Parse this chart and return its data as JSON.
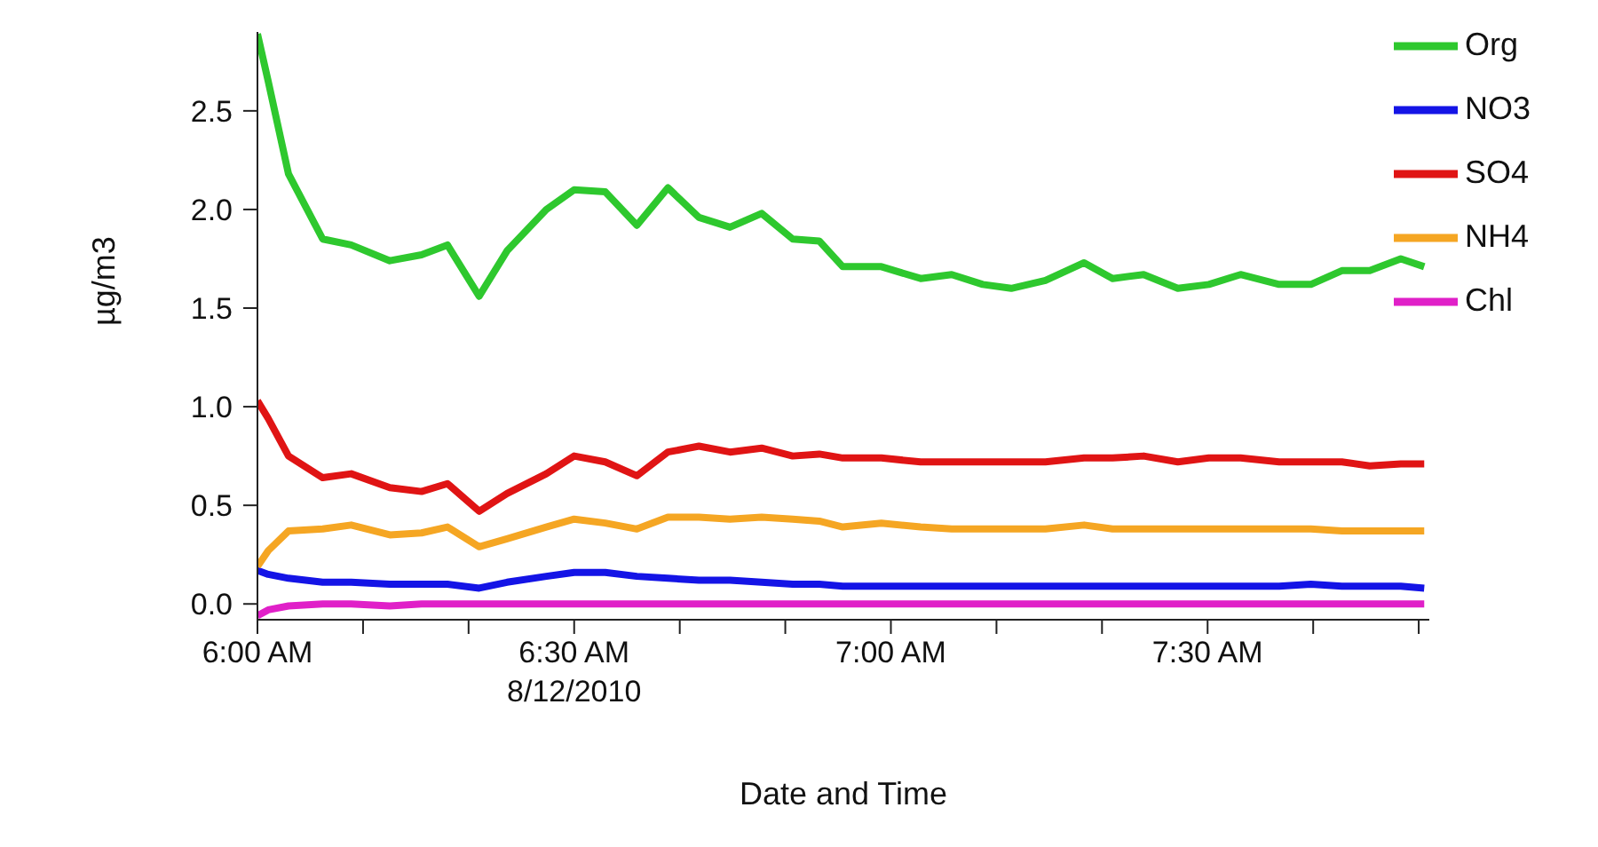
{
  "chart_data": {
    "type": "line",
    "xlabel": "Date and Time",
    "ylabel": "µg/m3",
    "x": [
      6.0,
      6.017,
      6.049,
      6.103,
      6.148,
      6.209,
      6.259,
      6.3,
      6.35,
      6.394,
      6.456,
      6.5,
      6.549,
      6.599,
      6.648,
      6.697,
      6.746,
      6.796,
      6.845,
      6.887,
      6.924,
      6.985,
      7.047,
      7.096,
      7.145,
      7.19,
      7.244,
      7.305,
      7.35,
      7.399,
      7.453,
      7.502,
      7.552,
      7.613,
      7.663,
      7.712,
      7.756,
      7.805,
      7.842
    ],
    "series": [
      {
        "name": "Org",
        "color": "#2ec82e",
        "values": [
          2.89,
          2.65,
          2.18,
          1.85,
          1.82,
          1.74,
          1.77,
          1.82,
          1.56,
          1.79,
          2.0,
          2.1,
          2.09,
          1.92,
          2.11,
          1.96,
          1.91,
          1.98,
          1.85,
          1.84,
          1.71,
          1.71,
          1.65,
          1.67,
          1.62,
          1.6,
          1.64,
          1.73,
          1.65,
          1.67,
          1.6,
          1.62,
          1.67,
          1.62,
          1.62,
          1.69,
          1.69,
          1.75,
          1.71
        ]
      },
      {
        "name": "NO3",
        "color": "#1414e6",
        "values": [
          0.17,
          0.15,
          0.13,
          0.11,
          0.11,
          0.1,
          0.1,
          0.1,
          0.08,
          0.11,
          0.14,
          0.16,
          0.16,
          0.14,
          0.13,
          0.12,
          0.12,
          0.11,
          0.1,
          0.1,
          0.09,
          0.09,
          0.09,
          0.09,
          0.09,
          0.09,
          0.09,
          0.09,
          0.09,
          0.09,
          0.09,
          0.09,
          0.09,
          0.09,
          0.1,
          0.09,
          0.09,
          0.09,
          0.08
        ]
      },
      {
        "name": "SO4",
        "color": "#e01414",
        "values": [
          1.03,
          0.94,
          0.75,
          0.64,
          0.66,
          0.59,
          0.57,
          0.61,
          0.47,
          0.56,
          0.66,
          0.75,
          0.72,
          0.65,
          0.77,
          0.8,
          0.77,
          0.79,
          0.75,
          0.76,
          0.74,
          0.74,
          0.72,
          0.72,
          0.72,
          0.72,
          0.72,
          0.74,
          0.74,
          0.75,
          0.72,
          0.74,
          0.74,
          0.72,
          0.72,
          0.72,
          0.7,
          0.71,
          0.71
        ]
      },
      {
        "name": "NH4",
        "color": "#f5a623",
        "values": [
          0.19,
          0.27,
          0.37,
          0.38,
          0.4,
          0.35,
          0.36,
          0.39,
          0.29,
          0.33,
          0.39,
          0.43,
          0.41,
          0.38,
          0.44,
          0.44,
          0.43,
          0.44,
          0.43,
          0.42,
          0.39,
          0.41,
          0.39,
          0.38,
          0.38,
          0.38,
          0.38,
          0.4,
          0.38,
          0.38,
          0.38,
          0.38,
          0.38,
          0.38,
          0.38,
          0.37,
          0.37,
          0.37,
          0.37
        ]
      },
      {
        "name": "Chl",
        "color": "#e020c8",
        "values": [
          -0.06,
          -0.03,
          -0.01,
          0.0,
          0.0,
          -0.01,
          0.0,
          0.0,
          0.0,
          0.0,
          0.0,
          0.0,
          0.0,
          0.0,
          0.0,
          0.0,
          0.0,
          0.0,
          0.0,
          0.0,
          0.0,
          0.0,
          0.0,
          0.0,
          0.0,
          0.0,
          0.0,
          0.0,
          0.0,
          0.0,
          0.0,
          0.0,
          0.0,
          0.0,
          0.0,
          0.0,
          0.0,
          0.0,
          0.0
        ]
      }
    ],
    "xlim": [
      6.0,
      7.85
    ],
    "xticks": [
      {
        "value": 6.0,
        "label": "6:00 AM"
      },
      {
        "value": 6.1667,
        "label": null
      },
      {
        "value": 6.3333,
        "label": null
      },
      {
        "value": 6.5,
        "label": "6:30 AM\n8/12/2010"
      },
      {
        "value": 6.6667,
        "label": null
      },
      {
        "value": 6.8333,
        "label": null
      },
      {
        "value": 7.0,
        "label": "7:00 AM"
      },
      {
        "value": 7.1667,
        "label": null
      },
      {
        "value": 7.3333,
        "label": null
      },
      {
        "value": 7.5,
        "label": "7:30 AM"
      },
      {
        "value": 7.6667,
        "label": null
      },
      {
        "value": 7.8333,
        "label": null
      }
    ],
    "ylim": [
      -0.08,
      2.9
    ],
    "yticks": [
      {
        "value": 0,
        "label": "0.0"
      },
      {
        "value": 0.5,
        "label": "0.5"
      },
      {
        "value": 1,
        "label": "1.0"
      },
      {
        "value": 1.5,
        "label": "1.5"
      },
      {
        "value": 2,
        "label": "2.0"
      },
      {
        "value": 2.5,
        "label": "2.5"
      }
    ],
    "legend": "top right",
    "grid": false,
    "marker": "none",
    "line_style": "solid"
  }
}
